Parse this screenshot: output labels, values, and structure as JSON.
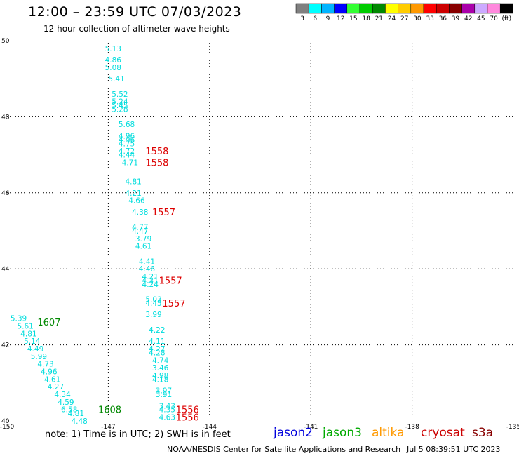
{
  "header": {
    "title": "12:00 – 23:59 UTC 07/03/2023",
    "subtitle": "12 hour collection of altimeter wave heights"
  },
  "colorbar": {
    "bins": [
      {
        "label": "3",
        "color": "#808080"
      },
      {
        "label": "6",
        "color": "#00ffff"
      },
      {
        "label": "9",
        "color": "#00b4ff"
      },
      {
        "label": "12",
        "color": "#0000ff"
      },
      {
        "label": "15",
        "color": "#33ff33"
      },
      {
        "label": "18",
        "color": "#00cc00"
      },
      {
        "label": "21",
        "color": "#008800"
      },
      {
        "label": "24",
        "color": "#ffff00"
      },
      {
        "label": "27",
        "color": "#ffcc00"
      },
      {
        "label": "30",
        "color": "#ff9900"
      },
      {
        "label": "33",
        "color": "#ff0000"
      },
      {
        "label": "36",
        "color": "#cc0000"
      },
      {
        "label": "39",
        "color": "#880000"
      },
      {
        "label": "42",
        "color": "#aa00aa"
      },
      {
        "label": "45",
        "color": "#ccaaff"
      },
      {
        "label": "70",
        "color": "#ff88dd"
      },
      {
        "label": "(ft)",
        "color": "#000000"
      }
    ]
  },
  "footer": {
    "note": "note:  1) Time is in UTC;  2) SWH is in feet",
    "satellites": [
      {
        "name": "jason2",
        "color": "#0000dd"
      },
      {
        "name": "jason3",
        "color": "#00aa00"
      },
      {
        "name": "altika",
        "color": "#ff9900"
      },
      {
        "name": "cryosat",
        "color": "#cc0000"
      },
      {
        "name": "s3a",
        "color": "#880000"
      }
    ],
    "credit": "NOAA/NESDIS Center for Satellite Applications and Research",
    "timestamp": "Jul  5 08:39:51 UTC 2023"
  },
  "chart_data": {
    "type": "scatter",
    "xlim": [
      -150,
      -135
    ],
    "ylim": [
      40,
      50
    ],
    "x_ticks": [
      "-150",
      "-147",
      "-144",
      "-141",
      "-138",
      "-135"
    ],
    "y_ticks": [
      "40",
      "42",
      "44",
      "46",
      "48",
      "50"
    ],
    "grid": true,
    "colors": {
      "wave": "#00dddd",
      "time_jason3": "#008800",
      "time_s3a": "#dd0000"
    },
    "wave_heights": [
      {
        "x": -147.1,
        "y": 49.8,
        "v": "5.13"
      },
      {
        "x": -147.1,
        "y": 49.5,
        "v": "4.86"
      },
      {
        "x": -147.1,
        "y": 49.3,
        "v": "5.08"
      },
      {
        "x": -147.0,
        "y": 49.0,
        "v": "5.41"
      },
      {
        "x": -146.9,
        "y": 48.6,
        "v": "5.52"
      },
      {
        "x": -146.9,
        "y": 48.4,
        "v": "5.24"
      },
      {
        "x": -146.9,
        "y": 48.3,
        "v": "5.45"
      },
      {
        "x": -146.9,
        "y": 48.2,
        "v": "5.28"
      },
      {
        "x": -146.7,
        "y": 47.8,
        "v": "5.68"
      },
      {
        "x": -146.7,
        "y": 47.5,
        "v": "4.96"
      },
      {
        "x": -146.7,
        "y": 47.4,
        "v": "4.96"
      },
      {
        "x": -146.7,
        "y": 47.3,
        "v": "4.75"
      },
      {
        "x": -146.7,
        "y": 47.1,
        "v": "4.72"
      },
      {
        "x": -146.7,
        "y": 47.0,
        "v": "4.44"
      },
      {
        "x": -146.6,
        "y": 46.8,
        "v": "4.71"
      },
      {
        "x": -146.5,
        "y": 46.3,
        "v": "4.81"
      },
      {
        "x": -146.5,
        "y": 46.0,
        "v": "4.21"
      },
      {
        "x": -146.4,
        "y": 45.8,
        "v": "4.66"
      },
      {
        "x": -146.3,
        "y": 45.5,
        "v": "4.38"
      },
      {
        "x": -146.3,
        "y": 45.1,
        "v": "4.77"
      },
      {
        "x": -146.3,
        "y": 45.0,
        "v": "4.47"
      },
      {
        "x": -146.2,
        "y": 44.8,
        "v": "3.79"
      },
      {
        "x": -146.2,
        "y": 44.6,
        "v": "4.61"
      },
      {
        "x": -146.1,
        "y": 44.2,
        "v": "4.41"
      },
      {
        "x": -146.1,
        "y": 44.0,
        "v": "4.46"
      },
      {
        "x": -146.0,
        "y": 43.8,
        "v": "4.21"
      },
      {
        "x": -146.0,
        "y": 43.7,
        "v": "4.31"
      },
      {
        "x": -146.0,
        "y": 43.6,
        "v": "4.24"
      },
      {
        "x": -145.9,
        "y": 43.2,
        "v": "5.03"
      },
      {
        "x": -145.9,
        "y": 43.1,
        "v": "4.45"
      },
      {
        "x": -145.9,
        "y": 42.8,
        "v": "3.99"
      },
      {
        "x": -145.8,
        "y": 42.4,
        "v": "4.22"
      },
      {
        "x": -145.8,
        "y": 42.1,
        "v": "4.11"
      },
      {
        "x": -145.8,
        "y": 41.9,
        "v": "4.27"
      },
      {
        "x": -145.8,
        "y": 41.8,
        "v": "4.28"
      },
      {
        "x": -145.7,
        "y": 41.6,
        "v": "4.74"
      },
      {
        "x": -145.7,
        "y": 41.4,
        "v": "3.46"
      },
      {
        "x": -145.7,
        "y": 41.2,
        "v": "4.98"
      },
      {
        "x": -145.7,
        "y": 41.1,
        "v": "4.18"
      },
      {
        "x": -145.6,
        "y": 40.8,
        "v": "3.97"
      },
      {
        "x": -145.6,
        "y": 40.7,
        "v": "3.91"
      },
      {
        "x": -145.5,
        "y": 40.4,
        "v": "3.43"
      },
      {
        "x": -145.5,
        "y": 40.3,
        "v": "4.35"
      },
      {
        "x": -145.5,
        "y": 40.1,
        "v": "4.63"
      },
      {
        "x": -149.9,
        "y": 42.7,
        "v": "5.39"
      },
      {
        "x": -149.7,
        "y": 42.5,
        "v": "5.61"
      },
      {
        "x": -149.6,
        "y": 42.3,
        "v": "4.81"
      },
      {
        "x": -149.5,
        "y": 42.1,
        "v": "5.14"
      },
      {
        "x": -149.4,
        "y": 41.9,
        "v": "4.49"
      },
      {
        "x": -149.3,
        "y": 41.7,
        "v": "5.99"
      },
      {
        "x": -149.1,
        "y": 41.5,
        "v": "4.73"
      },
      {
        "x": -149.0,
        "y": 41.3,
        "v": "4.96"
      },
      {
        "x": -148.9,
        "y": 41.1,
        "v": "4.61"
      },
      {
        "x": -148.8,
        "y": 40.9,
        "v": "4.27"
      },
      {
        "x": -148.6,
        "y": 40.7,
        "v": "4.34"
      },
      {
        "x": -148.5,
        "y": 40.5,
        "v": "4.59"
      },
      {
        "x": -148.4,
        "y": 40.3,
        "v": "6.58"
      },
      {
        "x": -148.2,
        "y": 40.2,
        "v": "4.81"
      },
      {
        "x": -148.1,
        "y": 40.0,
        "v": "4.48"
      }
    ],
    "time_labels": [
      {
        "x": -145.9,
        "y": 47.1,
        "v": "1558",
        "sat": "s3a"
      },
      {
        "x": -145.9,
        "y": 46.8,
        "v": "1558",
        "sat": "s3a"
      },
      {
        "x": -145.7,
        "y": 45.5,
        "v": "1557",
        "sat": "s3a"
      },
      {
        "x": -145.5,
        "y": 43.7,
        "v": "1557",
        "sat": "s3a"
      },
      {
        "x": -145.4,
        "y": 43.1,
        "v": "1557",
        "sat": "s3a"
      },
      {
        "x": -145.0,
        "y": 40.3,
        "v": "1556",
        "sat": "s3a"
      },
      {
        "x": -145.0,
        "y": 40.1,
        "v": "1556",
        "sat": "s3a"
      },
      {
        "x": -149.1,
        "y": 42.6,
        "v": "1607",
        "sat": "jason3"
      },
      {
        "x": -147.3,
        "y": 40.3,
        "v": "1608",
        "sat": "jason3"
      }
    ]
  }
}
